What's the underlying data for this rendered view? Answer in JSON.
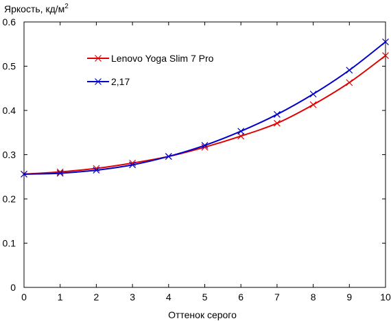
{
  "chart_data": {
    "type": "line",
    "ylabel": "Яркость, кд/м",
    "ylabel_sup": "2",
    "xlabel": "Оттенок серого",
    "xlim": [
      0,
      10
    ],
    "ylim": [
      0,
      0.6
    ],
    "x_ticks": [
      0,
      1,
      2,
      3,
      4,
      5,
      6,
      7,
      8,
      9,
      10
    ],
    "y_ticks": [
      0,
      0.1,
      0.2,
      0.3,
      0.4,
      0.5,
      0.6
    ],
    "y_tick_labels": [
      "0",
      "0.1",
      "0.2",
      "0.3",
      "0.4",
      "0.5",
      "0.6"
    ],
    "grid": false,
    "legend_position": "upper-left",
    "x": [
      0,
      1,
      2,
      3,
      4,
      5,
      6,
      7,
      8,
      9,
      10
    ],
    "series": [
      {
        "name": "Lenovo Yoga Slim 7 Pro",
        "color": "#e00000",
        "marker": "x",
        "values": [
          0.256,
          0.261,
          0.269,
          0.281,
          0.296,
          0.317,
          0.342,
          0.371,
          0.413,
          0.463,
          0.524
        ]
      },
      {
        "name": "2,17",
        "color": "#0000cc",
        "marker": "x",
        "values": [
          0.256,
          0.258,
          0.265,
          0.277,
          0.296,
          0.321,
          0.353,
          0.391,
          0.437,
          0.491,
          0.555
        ]
      }
    ]
  }
}
